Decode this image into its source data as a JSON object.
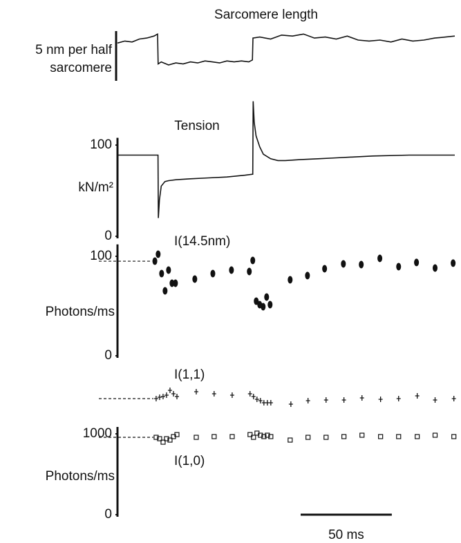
{
  "chart_data": [
    {
      "type": "line",
      "title": "Sarcomere length",
      "scale_bar": {
        "value": 5,
        "label": [
          "5 nm per half",
          "sarcomere"
        ]
      },
      "xlim": [
        0,
        185
      ],
      "ylim": [
        -3.5,
        1.5
      ],
      "color": "#111111",
      "x": [
        0,
        4,
        8,
        12,
        16,
        20,
        22,
        22.3,
        24,
        28,
        32,
        36,
        40,
        44,
        48,
        52,
        56,
        60,
        64,
        68,
        72,
        74,
        74.3,
        78,
        84,
        90,
        96,
        102,
        108,
        114,
        120,
        126,
        132,
        138,
        144,
        150,
        156,
        162,
        168,
        174,
        180,
        185
      ],
      "values": [
        0.3,
        0.5,
        0.4,
        0.7,
        0.8,
        1.0,
        1.2,
        -1.8,
        -1.6,
        -1.9,
        -1.7,
        -1.8,
        -1.6,
        -1.7,
        -1.5,
        -1.6,
        -1.7,
        -1.5,
        -1.6,
        -1.5,
        -1.6,
        -1.4,
        0.8,
        0.9,
        0.7,
        1.1,
        1.0,
        1.2,
        0.8,
        0.9,
        0.7,
        1.0,
        0.6,
        0.5,
        0.6,
        0.4,
        0.7,
        0.5,
        0.6,
        0.8,
        0.9,
        1.0
      ]
    },
    {
      "type": "line",
      "title": "Tension",
      "ylabel": "kN/m²",
      "xlim": [
        0,
        185
      ],
      "ylim": [
        0,
        108
      ],
      "yticks": [
        0,
        100
      ],
      "color": "#111111",
      "x": [
        0,
        10,
        20,
        22.2,
        22.4,
        23,
        24,
        26,
        28,
        32,
        40,
        50,
        60,
        70,
        74.2,
        74.4,
        75,
        76,
        78,
        80,
        84,
        88,
        92,
        100,
        110,
        120,
        140,
        160,
        185
      ],
      "values": [
        89,
        89,
        89,
        89,
        20,
        40,
        55,
        60,
        61,
        62,
        63,
        64,
        65,
        67,
        68,
        148,
        125,
        110,
        98,
        90,
        85,
        83,
        83,
        84,
        85,
        86,
        88,
        89,
        89
      ]
    },
    {
      "type": "scatter",
      "title": "I(14.5nm)",
      "ylabel": "Photons/ms",
      "marker": "ellipse",
      "baseline": 95.1,
      "xlim": [
        0,
        185
      ],
      "ylim": [
        0,
        112
      ],
      "yticks": [
        0,
        100
      ],
      "color": "#111111",
      "x": [
        20.5,
        22.3,
        24.2,
        26.1,
        28.0,
        29.9,
        31.8,
        42.4,
        52.3,
        62.5,
        72.3,
        74.2,
        76.1,
        78.0,
        79.9,
        81.8,
        83.7,
        94.7,
        104.2,
        113.6,
        123.9,
        133.7,
        143.9,
        154.2,
        164.0,
        174.2,
        184.1
      ],
      "values": [
        95.1,
        102.1,
        82.6,
        65.3,
        86.1,
        72.9,
        72.9,
        77.1,
        82.6,
        86.1,
        84.7,
        95.8,
        54.9,
        51.4,
        49.3,
        59.0,
        51.4,
        76.4,
        80.6,
        87.5,
        92.4,
        91.7,
        97.9,
        89.6,
        93.8,
        88.2,
        93.1
      ]
    },
    {
      "type": "scatter",
      "title": "I(1,1)",
      "marker": "cross",
      "baseline": 1.0,
      "xlim": [
        0,
        185
      ],
      "ylim": [
        0.8,
        1.2
      ],
      "color": "#111111",
      "x": [
        21.2,
        23.1,
        25.0,
        26.9,
        28.8,
        30.7,
        32.6,
        43.2,
        53.0,
        62.9,
        72.7,
        74.6,
        76.5,
        78.4,
        80.3,
        82.2,
        84.1,
        95.1,
        104.5,
        114.4,
        124.2,
        134.1,
        144.3,
        154.2,
        164.4,
        174.2,
        184.5
      ],
      "values": [
        1.0,
        1.01,
        1.015,
        1.025,
        1.06,
        1.035,
        1.015,
        1.05,
        1.035,
        1.025,
        1.035,
        1.015,
        0.995,
        0.985,
        0.97,
        0.97,
        0.97,
        0.96,
        0.985,
        0.99,
        0.99,
        1.005,
        0.995,
        1.0,
        1.02,
        0.99,
        1.0
      ]
    },
    {
      "type": "scatter",
      "title": "I(1,0)",
      "ylabel": "Photons/ms",
      "marker": "square",
      "baseline": 957,
      "xlim": [
        0,
        185
      ],
      "ylim": [
        0,
        1085
      ],
      "yticks": [
        0,
        1000
      ],
      "color": "#111111",
      "x": [
        21.2,
        23.1,
        25.0,
        26.9,
        28.8,
        30.7,
        32.6,
        43.2,
        53.0,
        62.9,
        72.7,
        74.6,
        76.5,
        78.4,
        80.3,
        82.2,
        84.1,
        94.7,
        104.5,
        114.4,
        124.2,
        134.1,
        144.3,
        154.2,
        164.4,
        174.2,
        184.5
      ],
      "values": [
        957,
        940,
        897,
        940,
        923,
        966,
        991,
        957,
        966,
        966,
        991,
        957,
        1009,
        983,
        966,
        983,
        966,
        923,
        957,
        957,
        966,
        983,
        966,
        966,
        966,
        983,
        966
      ]
    }
  ],
  "time_scale_bar": {
    "value": 50,
    "label": "50 ms"
  }
}
